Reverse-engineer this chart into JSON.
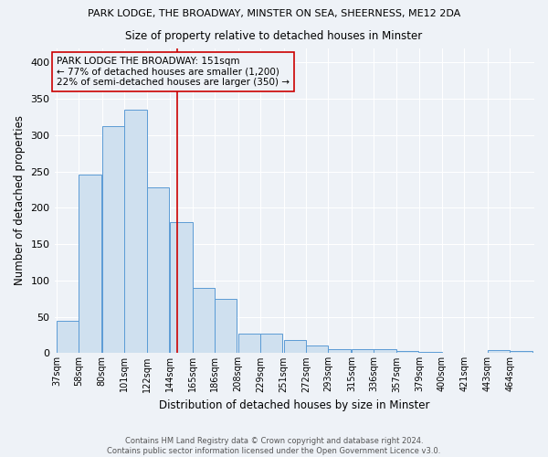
{
  "title1": "PARK LODGE, THE BROADWAY, MINSTER ON SEA, SHEERNESS, ME12 2DA",
  "title2": "Size of property relative to detached houses in Minster",
  "xlabel": "Distribution of detached houses by size in Minster",
  "ylabel": "Number of detached properties",
  "footnote1": "Contains HM Land Registry data © Crown copyright and database right 2024.",
  "footnote2": "Contains public sector information licensed under the Open Government Licence v3.0.",
  "bar_labels": [
    "37sqm",
    "58sqm",
    "80sqm",
    "101sqm",
    "122sqm",
    "144sqm",
    "165sqm",
    "186sqm",
    "208sqm",
    "229sqm",
    "251sqm",
    "272sqm",
    "293sqm",
    "315sqm",
    "336sqm",
    "357sqm",
    "379sqm",
    "400sqm",
    "421sqm",
    "443sqm",
    "464sqm"
  ],
  "bar_values": [
    44,
    246,
    312,
    335,
    228,
    180,
    90,
    75,
    27,
    27,
    18,
    10,
    5,
    5,
    5,
    3,
    2,
    0,
    0,
    4,
    3
  ],
  "bar_color": "#cfe0ef",
  "bar_edge_color": "#5b9bd5",
  "annotation_text": "PARK LODGE THE BROADWAY: 151sqm\n← 77% of detached houses are smaller (1,200)\n22% of semi-detached houses are larger (350) →",
  "vline_x": 151,
  "vline_color": "#cc0000",
  "annotation_box_edge": "#cc0000",
  "ylim": [
    0,
    420
  ],
  "yticks": [
    0,
    50,
    100,
    150,
    200,
    250,
    300,
    350,
    400
  ],
  "bg_color": "#eef2f7",
  "grid_color": "#ffffff",
  "bin_width": 21
}
